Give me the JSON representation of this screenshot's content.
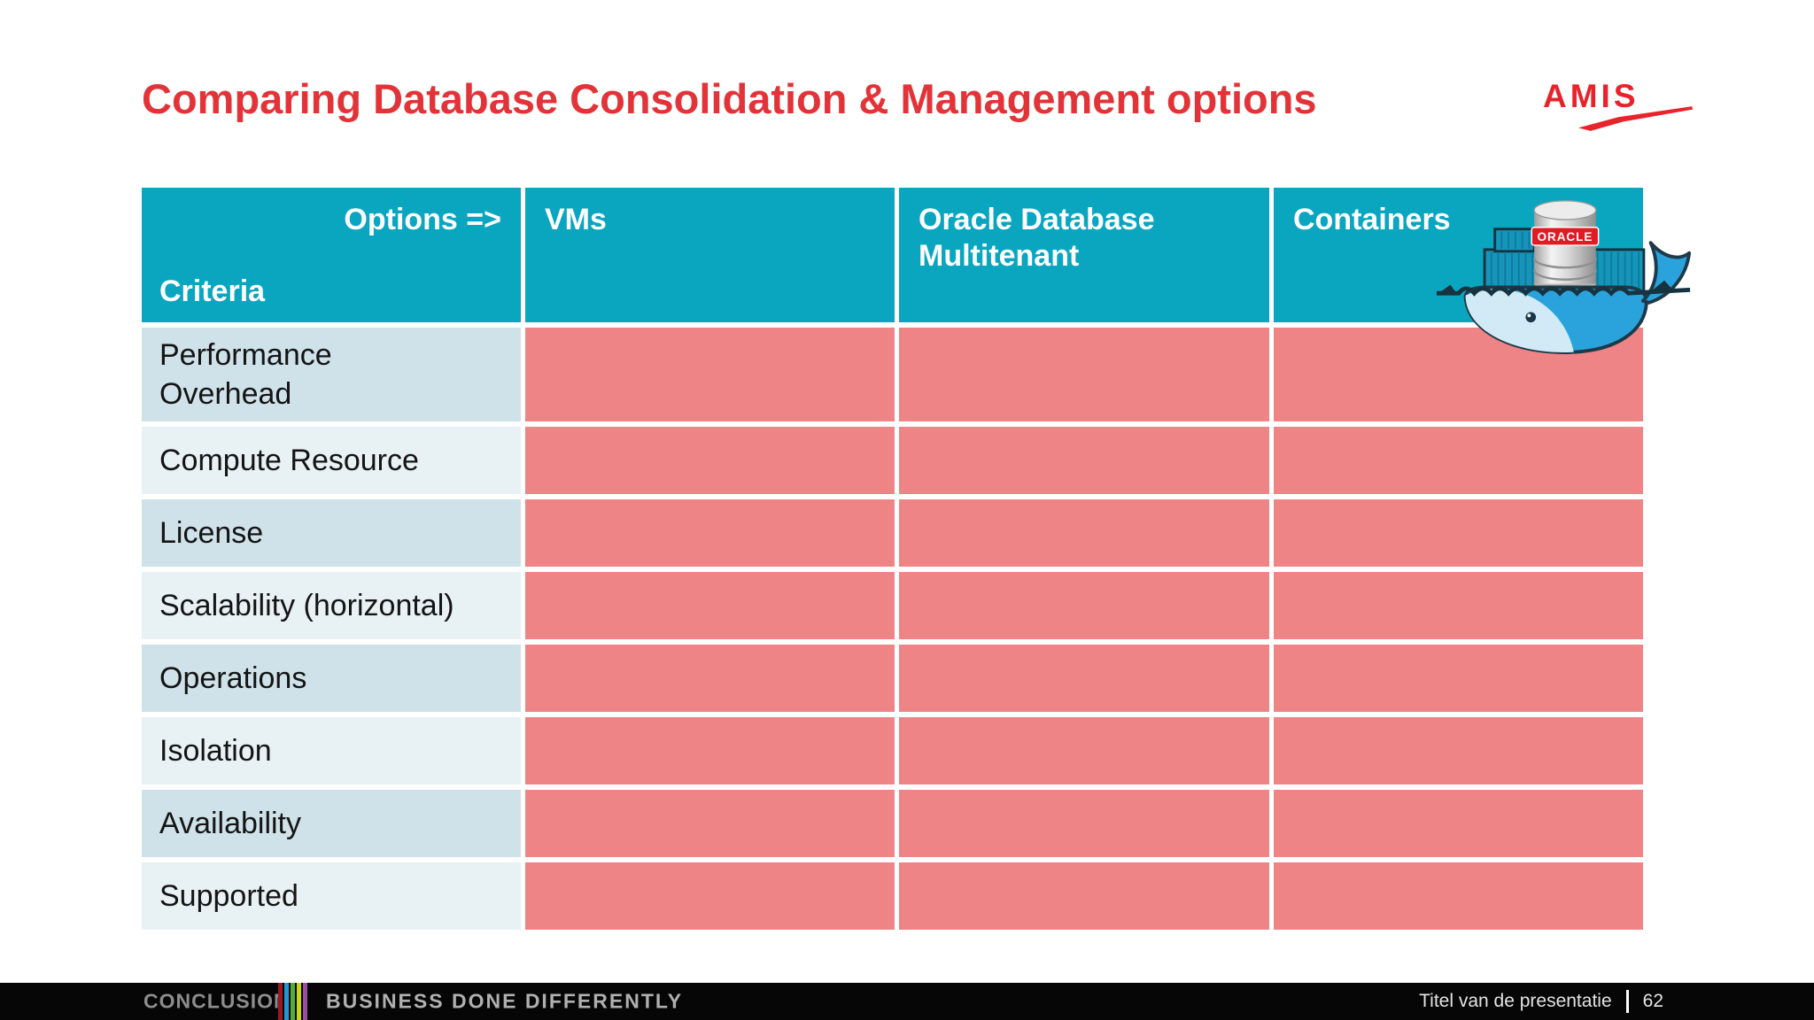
{
  "slide": {
    "title": "Comparing Database Consolidation & Management options",
    "logo_text": "AMIS"
  },
  "table": {
    "corner": {
      "options_label": "Options =>",
      "criteria_label": "Criteria"
    },
    "columns": [
      "VMs",
      "Oracle Database Multitenant",
      "Containers"
    ],
    "criteria": [
      "Performance\nOverhead",
      "Compute Resource",
      "License",
      "Scalability (horizontal)",
      "Operations",
      "Isolation",
      "Availability",
      "Supported"
    ]
  },
  "illustration": {
    "name": "docker-whale-carrying-oracle-database",
    "oracle_label": "ORACLE"
  },
  "footer": {
    "left_brand": "CONCLUSION",
    "tagline": "BUSINESS DONE DIFFERENTLY",
    "presentation_title": "Titel van de presentatie",
    "page_number": "62",
    "stripe_colors": [
      "#99191f",
      "#2097d4",
      "#56ab3a",
      "#c8d420",
      "#9a4f9e"
    ]
  },
  "colors": {
    "header_teal": "#0aa6c0",
    "cell_pink": "#ef8486",
    "row_label_dark": "#cfe1e9",
    "row_label_light": "#e8f1f4",
    "title_red": "#e23438",
    "amis_red": "#e8232b"
  }
}
